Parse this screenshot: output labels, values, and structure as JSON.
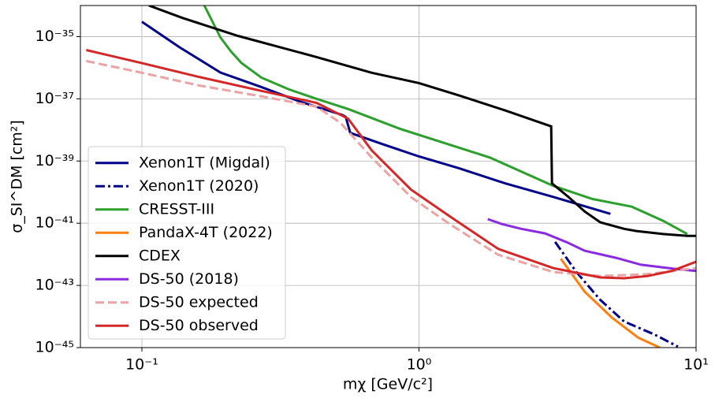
{
  "chart_data": {
    "type": "line",
    "xlabel": "mχ [GeV/c²]",
    "ylabel": "σ_SI^DM  [cm²]",
    "xscale": "log",
    "yscale": "log",
    "grid": true,
    "legend": "lower left",
    "xlim": [
      0.06,
      10
    ],
    "ylim": [
      1e-45,
      1e-34
    ],
    "xticks": [
      {
        "value": 0.1,
        "label": "10⁻¹"
      },
      {
        "value": 1,
        "label": "10⁰"
      },
      {
        "value": 10,
        "label": "10¹"
      }
    ],
    "yticks": [
      {
        "value": 1e-45,
        "label": "10⁻⁴⁵"
      },
      {
        "value": 1e-43,
        "label": "10⁻⁴³"
      },
      {
        "value": 1e-41,
        "label": "10⁻⁴¹"
      },
      {
        "value": 1e-39,
        "label": "10⁻³⁹"
      },
      {
        "value": 1e-37,
        "label": "10⁻³⁷"
      },
      {
        "value": 1e-35,
        "label": "10⁻³⁵"
      }
    ],
    "series": [
      {
        "name": "Xenon1T (Migdal)",
        "color": "#00008b",
        "linestyle": "solid",
        "x": [
          0.1,
          0.137,
          0.192,
          0.27,
          0.374,
          0.53,
          0.544,
          0.565,
          0.745,
          1.0,
          1.39,
          2.05,
          3.05,
          4.91
        ],
        "values": [
          3e-35,
          4.5e-36,
          7e-37,
          2.4e-37,
          8e-38,
          3e-38,
          2.6e-38,
          8e-39,
          3.4e-39,
          1.4e-39,
          5.9e-40,
          1.9e-40,
          7e-41,
          2e-41
        ]
      },
      {
        "name": "Xenon1T (2020)",
        "color": "#00008b",
        "linestyle": "dashdot",
        "x": [
          3.1,
          3.7,
          4.5,
          5.5,
          7.1,
          8.6
        ],
        "values": [
          2.5e-42,
          2.7e-43,
          3.5e-44,
          6.9e-45,
          2.6e-45,
          1.07e-45
        ]
      },
      {
        "name": "CRESST-III",
        "color": "#2ca02c",
        "linestyle": "solid",
        "x": [
          0.168,
          0.192,
          0.21,
          0.229,
          0.27,
          0.34,
          0.427,
          0.555,
          0.85,
          1.34,
          1.8,
          3.05,
          4.23,
          5.86,
          7.6,
          9.3
        ],
        "values": [
          1e-34,
          9.4e-36,
          3.3e-36,
          1.4e-36,
          4.8e-37,
          2e-37,
          1e-37,
          4.7e-38,
          1.1e-38,
          3e-39,
          1.3e-39,
          1.6e-40,
          6e-41,
          3.4e-41,
          1.2e-41,
          4.5e-42
        ]
      },
      {
        "name": "PandaX-4T (2022)",
        "color": "#ff7f0e",
        "linestyle": "solid",
        "x": [
          3.25,
          3.96,
          4.97,
          6.18,
          7.4
        ],
        "values": [
          7.2e-43,
          6.3e-44,
          9.2e-45,
          2.1e-45,
          1e-45
        ]
      },
      {
        "name": "CDEX",
        "color": "#000000",
        "linestyle": "solid",
        "x": [
          0.106,
          0.14,
          0.222,
          0.427,
          0.675,
          1.0,
          1.39,
          2.05,
          3.0,
          3.02,
          3.47,
          3.96,
          4.51,
          5.5,
          6.1,
          7.6,
          9.3,
          10
        ],
        "values": [
          1e-34,
          4e-35,
          1.06e-35,
          2.2e-36,
          6.9e-37,
          3.2e-37,
          1.3e-37,
          4.2e-38,
          1.3e-38,
          1.9e-40,
          6.9e-41,
          2.4e-41,
          1.07e-41,
          6.6e-42,
          5.6e-42,
          4.5e-42,
          3.9e-42,
          3.9e-42
        ]
      },
      {
        "name": "DS-50 (2018)",
        "color": "#8a2be2",
        "linestyle": "solid",
        "x": [
          1.77,
          1.99,
          2.34,
          2.85,
          3.43,
          3.96,
          5.14,
          6.34,
          8.4,
          10
        ],
        "values": [
          1.35e-41,
          9.4e-42,
          6.6e-42,
          4.7e-42,
          2.4e-42,
          1.3e-42,
          7.7e-43,
          4.6e-43,
          3.4e-43,
          2.9e-43
        ]
      },
      {
        "name": "DS-50 expected",
        "color": "#eba3a3",
        "linestyle": "dashed",
        "x": [
          0.063,
          0.1,
          0.16,
          0.27,
          0.427,
          0.52,
          0.675,
          0.936,
          1.3,
          1.93,
          3.05,
          4.51,
          6.68,
          10
        ],
        "values": [
          1.64e-36,
          6.9e-37,
          2.7e-37,
          1.2e-37,
          5.6e-38,
          1.7e-38,
          1.3e-39,
          6.9e-41,
          9e-42,
          9.7e-43,
          2.7e-43,
          2e-43,
          2.3e-43,
          3.6e-43
        ]
      },
      {
        "name": "DS-50 observed",
        "color": "#d62728",
        "linestyle": "solid",
        "x": [
          0.063,
          0.1,
          0.16,
          0.27,
          0.427,
          0.555,
          0.675,
          0.936,
          1.3,
          1.93,
          3.05,
          4.51,
          5.5,
          6.68,
          8.16,
          10
        ],
        "values": [
          3.7e-36,
          1.4e-36,
          5.1e-37,
          1.8e-37,
          7.4e-38,
          2.3e-38,
          2.2e-39,
          1.2e-40,
          1.6e-41,
          1.5e-42,
          3.6e-43,
          1.8e-43,
          1.7e-43,
          2e-43,
          2.9e-43,
          5.8e-43
        ]
      }
    ]
  }
}
